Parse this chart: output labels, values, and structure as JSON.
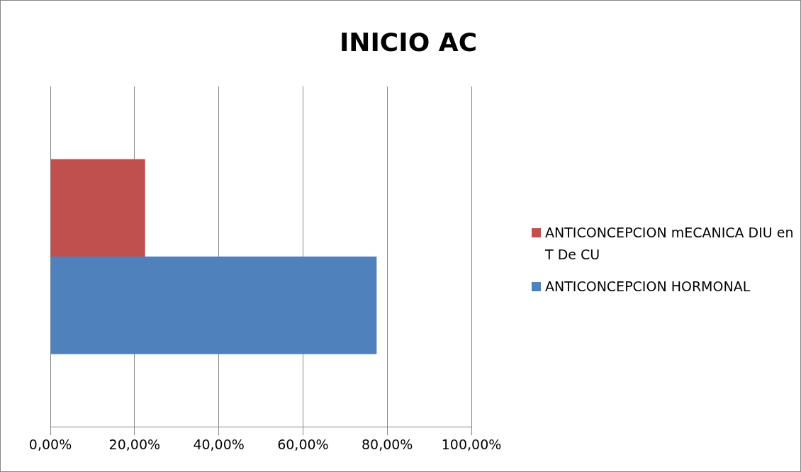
{
  "chart_data": {
    "type": "bar",
    "orientation": "horizontal",
    "title": "INICIO AC",
    "categories": [
      null
    ],
    "series": [
      {
        "name": "ANTICONCEPCION mECANICA DIU en T De CU",
        "color": "#c0504d",
        "values": [
          22.5
        ]
      },
      {
        "name": "ANTICONCEPCION HORMONAL",
        "color": "#4f81bd",
        "values": [
          77.5
        ]
      }
    ],
    "xlim": [
      0,
      100
    ],
    "xticks": [
      {
        "value": 0,
        "label": "0,00%"
      },
      {
        "value": 20,
        "label": "20,00%"
      },
      {
        "value": 40,
        "label": "40,00%"
      },
      {
        "value": 60,
        "label": "60,00%"
      },
      {
        "value": 80,
        "label": "80,00%"
      },
      {
        "value": 100,
        "label": "100,00%"
      }
    ],
    "grid": "x",
    "legend": "right"
  }
}
